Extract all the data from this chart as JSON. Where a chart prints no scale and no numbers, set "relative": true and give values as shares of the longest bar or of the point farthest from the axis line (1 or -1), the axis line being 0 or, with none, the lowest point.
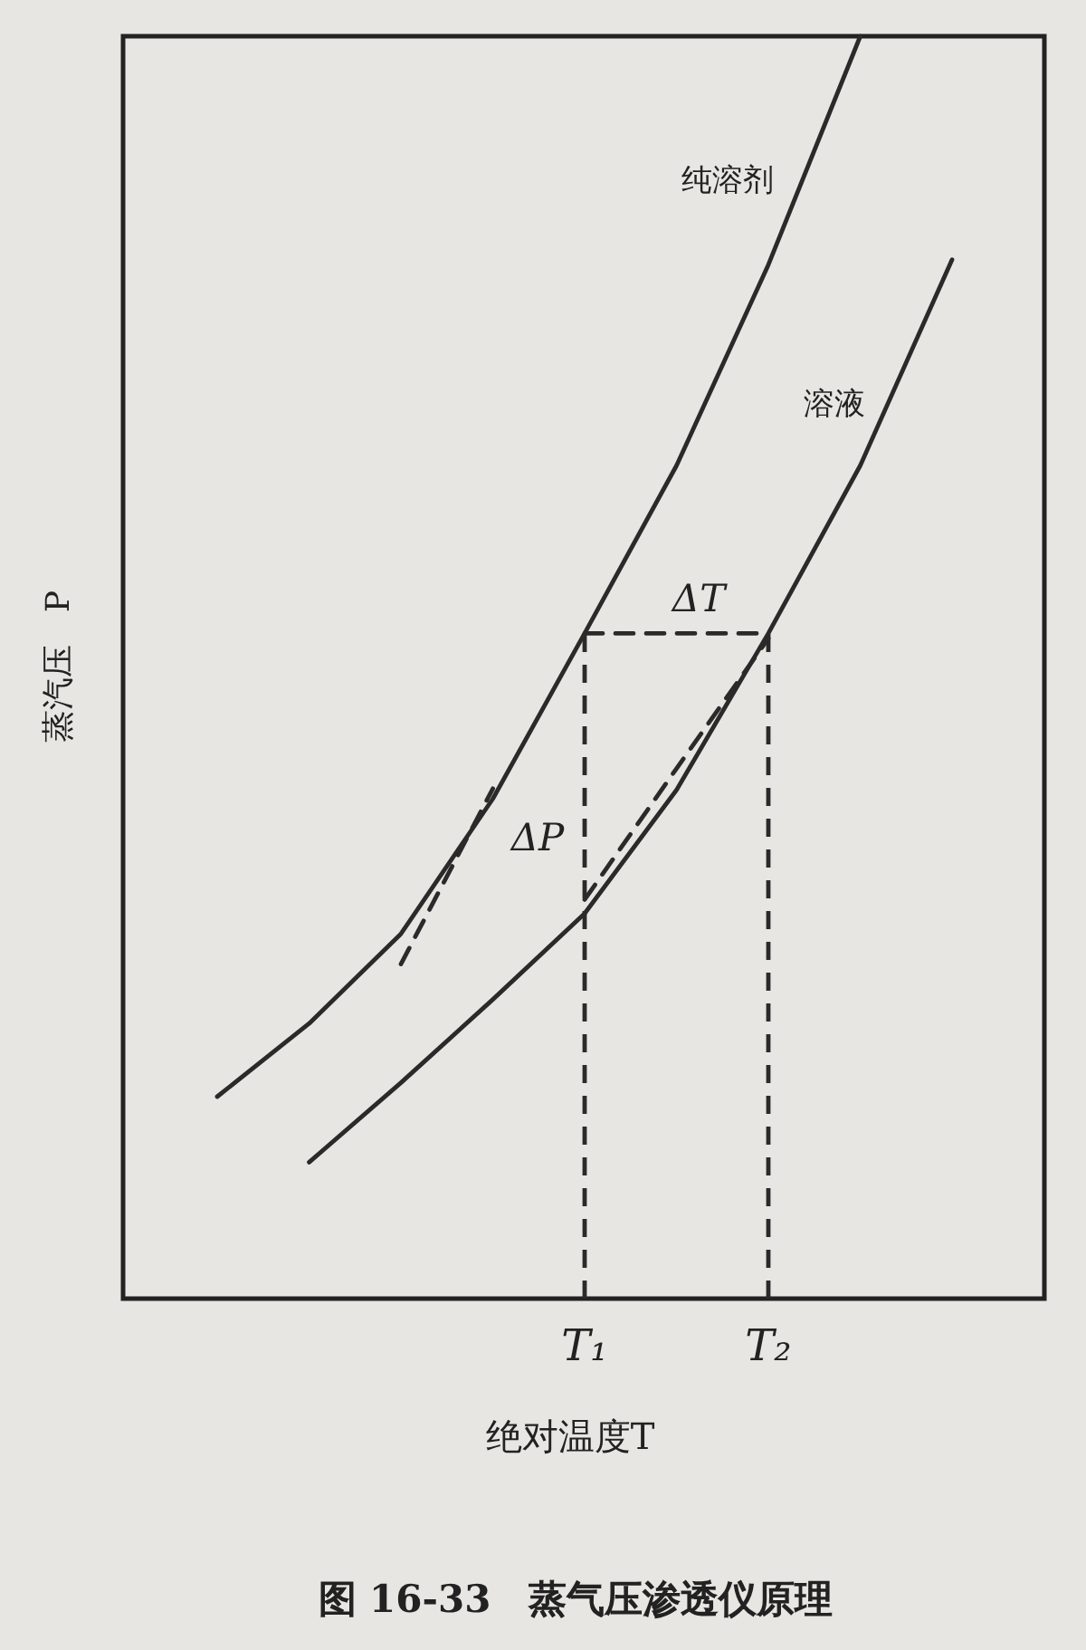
{
  "chart_data": {
    "type": "line",
    "relative": true,
    "title": "图 16-33　蒸气压渗透仪原理",
    "xlabel": "绝对温度T",
    "ylabel": "蒸汽压　P",
    "legend": false,
    "marker": "none",
    "categories": [
      null,
      null,
      null,
      null,
      null,
      "T₁",
      null,
      "T₂",
      null,
      null,
      null
    ],
    "series": [
      {
        "name": "纯溶剂",
        "color": "#2a2a2a",
        "line_style": "solid",
        "values": [
          null,
          0.16,
          0.218,
          0.289,
          0.396,
          0.527,
          0.66,
          0.819,
          1.0,
          null,
          null
        ]
      },
      {
        "name": "溶液",
        "color": "#2a2a2a",
        "line_style": "solid",
        "values": [
          null,
          null,
          0.108,
          0.171,
          0.237,
          0.305,
          0.403,
          0.527,
          0.66,
          0.823,
          null
        ]
      },
      {
        "color": "#2a2a2a",
        "line_style": "dashed",
        "values": [
          null,
          null,
          null,
          null,
          null,
          0.527,
          0.527,
          0.527,
          null,
          null,
          null
        ]
      },
      {
        "color": "#2a2a2a",
        "line_style": "dashed",
        "values": [
          null,
          null,
          null,
          0.265,
          0.404,
          null,
          null,
          null,
          null,
          null,
          null
        ]
      },
      {
        "color": "#2a2a2a",
        "line_style": "dashed",
        "values": [
          null,
          null,
          null,
          null,
          null,
          0.316,
          0.42,
          0.523,
          null,
          null,
          null
        ]
      }
    ],
    "ref_lines": [
      {
        "axis": "x",
        "value": "T₁",
        "line_style": "dashed",
        "color": "#2a2a2a"
      },
      {
        "axis": "x",
        "value": "T₂",
        "line_style": "dashed",
        "color": "#2a2a2a"
      }
    ],
    "annotations": [
      "ΔT",
      "ΔP"
    ]
  }
}
